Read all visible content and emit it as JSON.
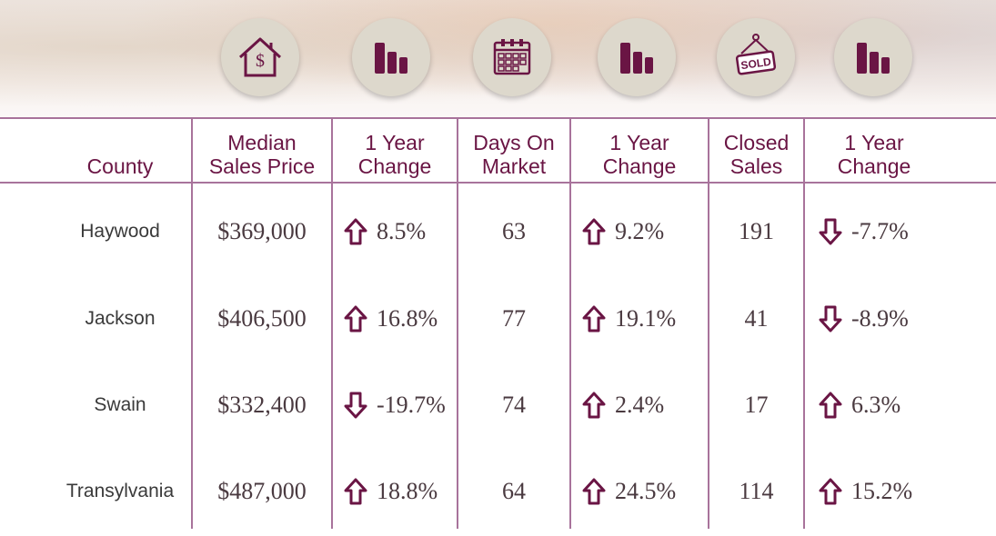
{
  "headers": {
    "county": "County",
    "median": "Median\nSales Price",
    "change1": "1 Year\nChange",
    "dom": "Days On\nMarket",
    "change2": "1 Year\nChange",
    "closed": "Closed\nSales",
    "change3": "1 Year\nChange"
  },
  "icons": [
    "house-dollar-icon",
    "bar-chart-icon",
    "calendar-icon",
    "bar-chart-icon",
    "sold-sign-icon",
    "bar-chart-icon"
  ],
  "colors": {
    "accent": "#6a1544",
    "rule": "#a8739b",
    "icon_bg": "#ddd8cc"
  },
  "rows": [
    {
      "county": "Haywood",
      "median": "$369,000",
      "median_dir": "up",
      "median_chg": "8.5%",
      "dom": "63",
      "dom_dir": "up",
      "dom_chg": "9.2%",
      "closed": "191",
      "closed_dir": "down",
      "closed_chg": "-7.7%"
    },
    {
      "county": "Jackson",
      "median": "$406,500",
      "median_dir": "up",
      "median_chg": "16.8%",
      "dom": "77",
      "dom_dir": "up",
      "dom_chg": "19.1%",
      "closed": "41",
      "closed_dir": "down",
      "closed_chg": "-8.9%"
    },
    {
      "county": "Swain",
      "median": "$332,400",
      "median_dir": "down",
      "median_chg": "-19.7%",
      "dom": "74",
      "dom_dir": "up",
      "dom_chg": "2.4%",
      "closed": "17",
      "closed_dir": "up",
      "closed_chg": "6.3%"
    },
    {
      "county": "Transylvania",
      "median": "$487,000",
      "median_dir": "up",
      "median_chg": "18.8%",
      "dom": "64",
      "dom_dir": "up",
      "dom_chg": "24.5%",
      "closed": "114",
      "closed_dir": "up",
      "closed_chg": "15.2%"
    }
  ]
}
